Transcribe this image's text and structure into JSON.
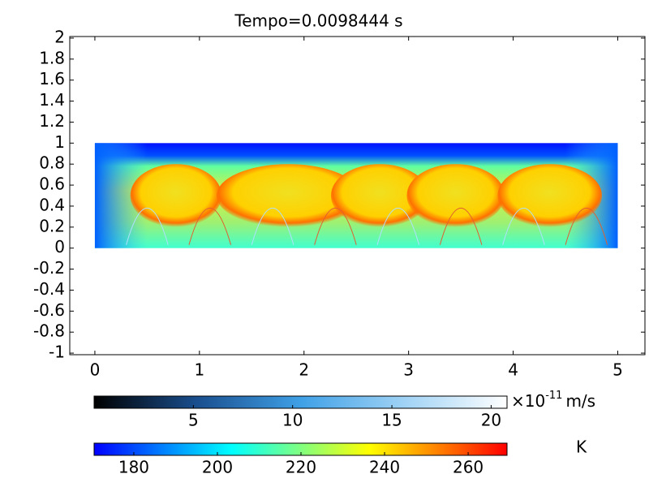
{
  "chart_data": {
    "type": "surface",
    "title": "Tempo=0.0098444 s",
    "xlim": [
      -0.24,
      5.26
    ],
    "ylim": [
      -1.015,
      2.015
    ],
    "xticks": [
      0,
      1,
      2,
      3,
      4,
      5
    ],
    "yticks": [
      -1,
      -0.8,
      -0.6,
      -0.4,
      -0.2,
      0,
      0.2,
      0.4,
      0.6,
      0.8,
      1,
      1.2,
      1.4,
      1.6,
      1.8,
      2
    ],
    "domain_x": [
      0,
      5
    ],
    "domain_y": [
      0,
      1
    ],
    "colorbars": [
      {
        "multiplier": "×10",
        "exponent": "-11",
        "unit": "m/s",
        "lim": [
          0,
          20.8
        ],
        "ticks": [
          5,
          10,
          15,
          20
        ],
        "colors": [
          "#000000",
          "#1a4f8f",
          "#3fa0e6",
          "#9fd2f5",
          "#ffffff"
        ]
      },
      {
        "unit": "K",
        "lim": [
          170.5,
          269.3
        ],
        "ticks": [
          180,
          200,
          220,
          240,
          260
        ],
        "colors": [
          "#0000ff",
          "#0080ff",
          "#00ffff",
          "#80ff80",
          "#ffff00",
          "#ff8000",
          "#ff0000"
        ]
      }
    ]
  }
}
